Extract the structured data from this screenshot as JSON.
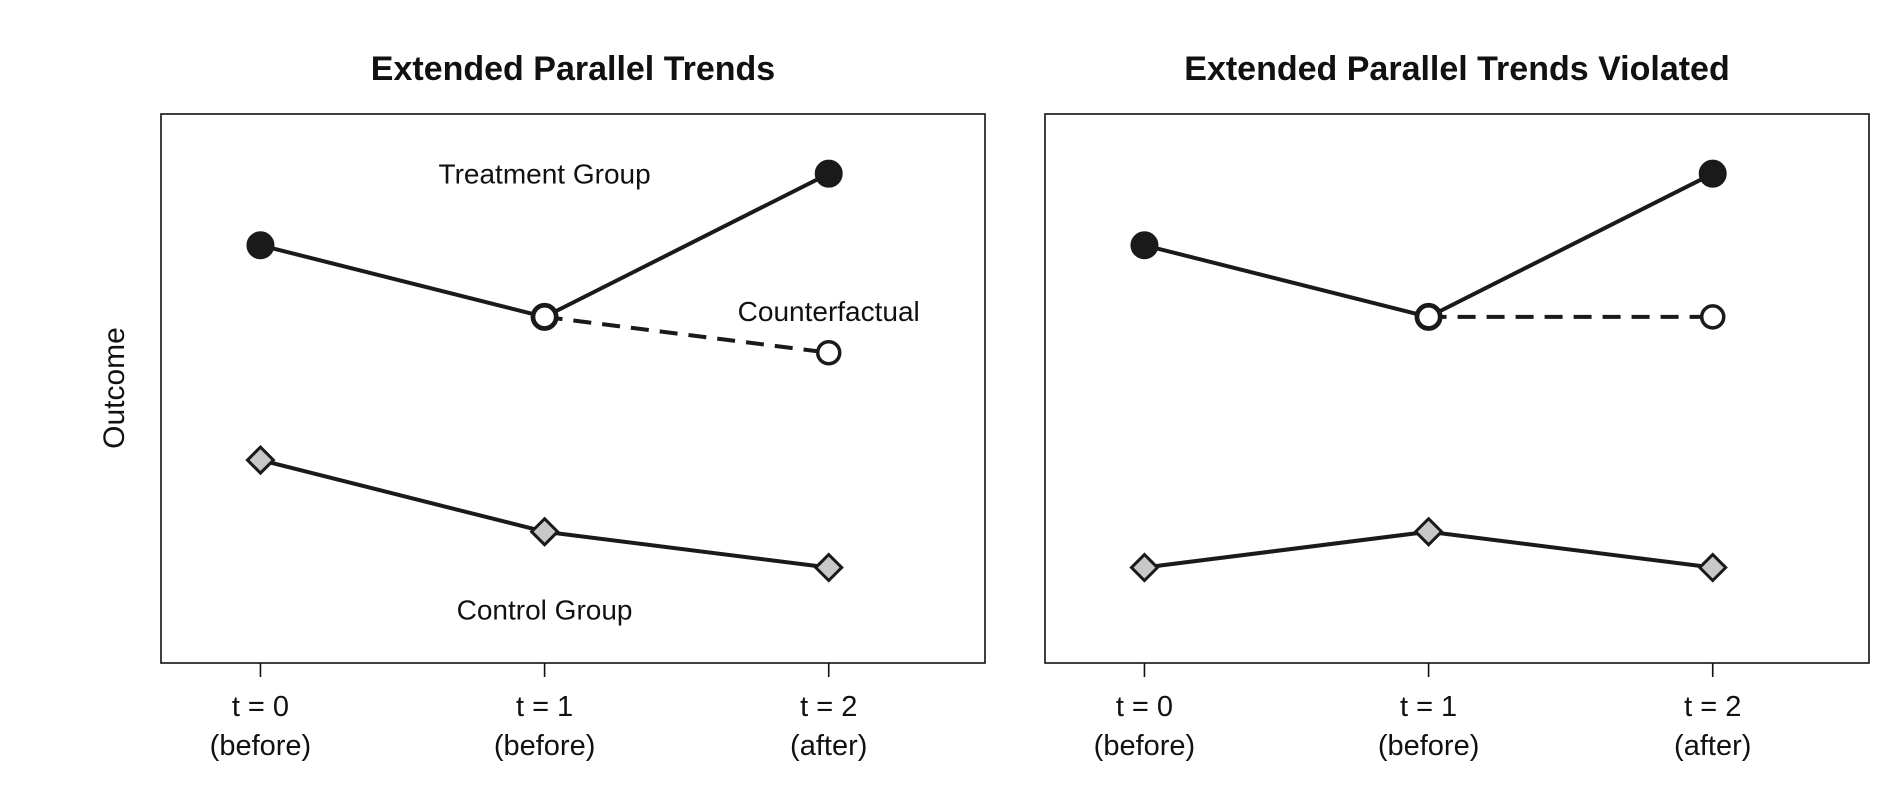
{
  "ylabel": "Outcome",
  "chart_data": [
    {
      "type": "line",
      "title": "Extended Parallel Trends",
      "x": [
        0,
        1,
        2
      ],
      "tick_labels": [
        [
          "t = 0",
          "(before)"
        ],
        [
          "t = 1",
          "(before)"
        ],
        [
          "t = 2",
          "(after)"
        ]
      ],
      "xlim": [
        -0.35,
        2.55
      ],
      "ylim": [
        0,
        9.2
      ],
      "grid": false,
      "series": [
        {
          "name": "Treatment Group",
          "values": [
            7.0,
            5.8,
            8.2
          ],
          "marker": "filled-circle",
          "style": "solid"
        },
        {
          "name": "Counterfactual",
          "x": [
            1,
            2
          ],
          "values": [
            5.8,
            5.2
          ],
          "marker": "open-circle",
          "style": "dashed"
        },
        {
          "name": "Control Group",
          "values": [
            3.4,
            2.2,
            1.6
          ],
          "marker": "gray-diamond",
          "style": "solid"
        }
      ],
      "annotations": [
        {
          "text": "Treatment Group",
          "x": 1.0,
          "y": 8.2
        },
        {
          "text": "Counterfactual",
          "x": 2.0,
          "y": 5.9
        },
        {
          "text": "Control Group",
          "x": 1.0,
          "y": 0.9
        }
      ]
    },
    {
      "type": "line",
      "title": "Extended Parallel Trends Violated",
      "x": [
        0,
        1,
        2
      ],
      "tick_labels": [
        [
          "t = 0",
          "(before)"
        ],
        [
          "t = 1",
          "(before)"
        ],
        [
          "t = 2",
          "(after)"
        ]
      ],
      "xlim": [
        -0.35,
        2.55
      ],
      "ylim": [
        0,
        9.2
      ],
      "grid": false,
      "series": [
        {
          "values": [
            7.0,
            5.8,
            8.2
          ],
          "marker": "filled-circle",
          "style": "solid"
        },
        {
          "x": [
            1,
            2
          ],
          "values": [
            5.8,
            5.8
          ],
          "marker": "open-circle",
          "style": "dashed"
        },
        {
          "values": [
            1.6,
            2.2,
            1.6
          ],
          "marker": "gray-diamond",
          "style": "solid"
        }
      ],
      "annotations": []
    }
  ],
  "colors": {
    "line": "#1a1a1a",
    "marker_fill": "#1a1a1a",
    "diamond_fill": "#c8c8c8",
    "open_fill": "#ffffff"
  }
}
